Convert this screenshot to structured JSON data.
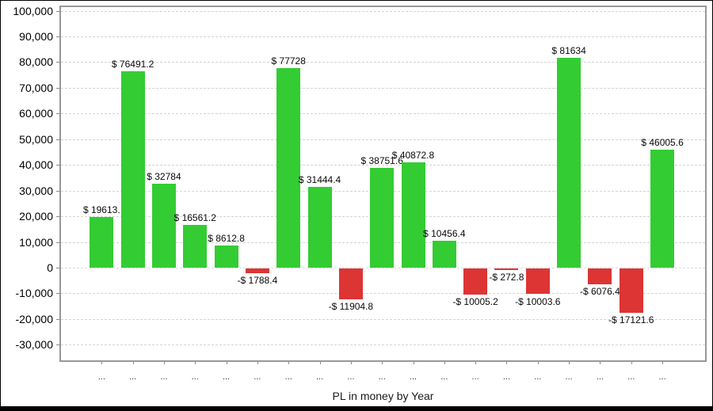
{
  "chart_data": {
    "type": "bar",
    "title": "",
    "xlabel": "PL in money by Year",
    "ylabel": "",
    "ylim": [
      -30000,
      100000
    ],
    "ytick_step": 10000,
    "grid": "dashed-horizontal",
    "legend": "none",
    "y_tick_labels": [
      "100,000",
      "90,000",
      "80,000",
      "70,000",
      "60,000",
      "50,000",
      "40,000",
      "30,000",
      "20,000",
      "10,000",
      "0",
      "-10,000",
      "-20,000",
      "-30,000"
    ],
    "categories": [
      "...",
      "...",
      "...",
      "...",
      "...",
      "...",
      "...",
      "...",
      "...",
      "...",
      "...",
      "...",
      "...",
      "...",
      "...",
      "...",
      "...",
      "...",
      "..."
    ],
    "values": [
      19613,
      76491.2,
      32784,
      16561.2,
      8612.8,
      -1788.4,
      77728,
      31444.4,
      -11904.8,
      38751.6,
      40872.8,
      10456.4,
      -10005.2,
      -272.8,
      -10003.6,
      81634,
      -6076.4,
      -17121.6,
      46005.6
    ],
    "bar_labels": [
      "$ 19613.",
      "$ 76491.2",
      "$ 32784",
      "$ 16561.2",
      "$ 8612.8",
      "-$ 1788.4",
      "$ 77728",
      "$ 31444.4",
      "-$ 11904.8",
      "$ 38751.6",
      "$ 40872.8",
      "$ 10456.4",
      "-$ 10005.2",
      "-$ 272.8",
      "-$ 10003.6",
      "$ 81634",
      "-$ 6076.4",
      "-$ 17121.6",
      "$ 46005.6"
    ],
    "colors": {
      "positive_bar": "#33cc33",
      "negative_bar": "#dd3434",
      "grid_line": "#d4d4d4",
      "plot_border": "#989898",
      "label_text": "#0a0a0a",
      "axis_text": "#000000",
      "bottom_strip": "#000000"
    }
  }
}
